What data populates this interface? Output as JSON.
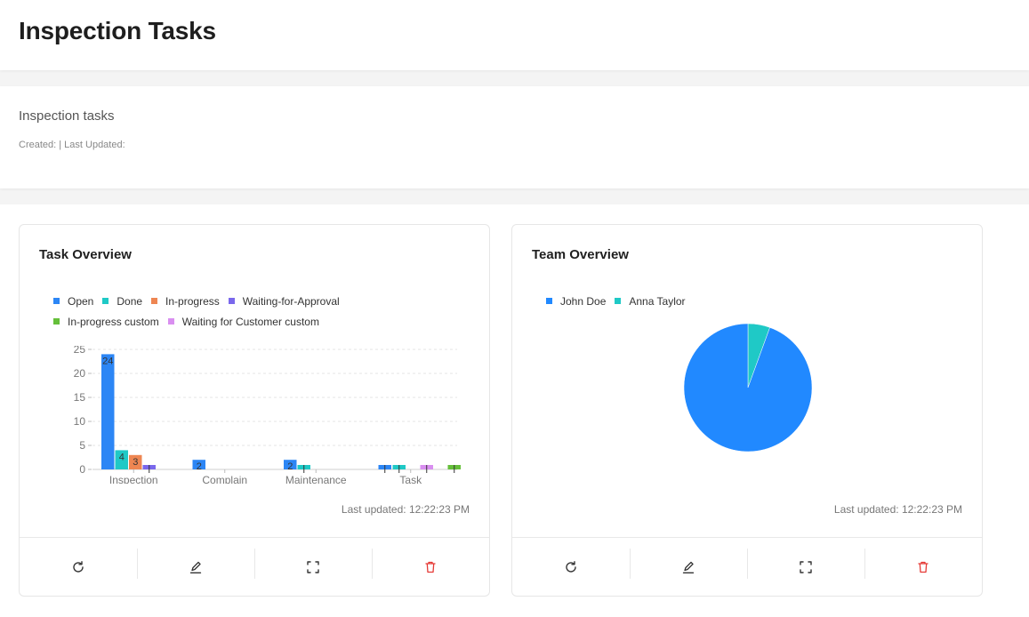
{
  "page": {
    "title": "Inspection Tasks"
  },
  "info": {
    "title": "Inspection tasks",
    "meta": "Created: | Last Updated:"
  },
  "task_widget": {
    "title": "Task Overview",
    "last_updated": "Last updated: 12:22:23 PM",
    "legend": [
      {
        "label": "Open",
        "color": "#2c86f5"
      },
      {
        "label": "Done",
        "color": "#1fc9c6"
      },
      {
        "label": "In-progress",
        "color": "#ee8652"
      },
      {
        "label": "Waiting-for-Approval",
        "color": "#7a68ec"
      },
      {
        "label": "In-progress custom",
        "color": "#65bf3a"
      },
      {
        "label": "Waiting for Customer custom",
        "color": "#d98ff0"
      }
    ]
  },
  "team_widget": {
    "title": "Team Overview",
    "last_updated": "Last updated: 12:22:23 PM",
    "legend": [
      {
        "label": "John Doe",
        "color": "#2189ff"
      },
      {
        "label": "Anna Taylor",
        "color": "#1fc9c6"
      }
    ]
  },
  "footer_icons": [
    "refresh-icon",
    "edit-icon",
    "fullscreen-icon",
    "delete-icon"
  ],
  "chart_data": [
    {
      "type": "bar",
      "title": "Task Overview",
      "categories": [
        "Inspection",
        "Complain",
        "Maintenance",
        "Task"
      ],
      "yticks": [
        0,
        5,
        10,
        15,
        20,
        25
      ],
      "ylim": [
        0,
        25
      ],
      "grid": true,
      "legend_position": "top",
      "series": [
        {
          "name": "Open",
          "color": "#2c86f5",
          "values": [
            24,
            2,
            2,
            1
          ]
        },
        {
          "name": "Done",
          "color": "#1fc9c6",
          "values": [
            4,
            0,
            1,
            1
          ]
        },
        {
          "name": "In-progress",
          "color": "#ee8652",
          "values": [
            3,
            0,
            0,
            0
          ]
        },
        {
          "name": "Waiting-for-Approval",
          "color": "#7a68ec",
          "values": [
            1,
            0,
            0,
            0
          ]
        },
        {
          "name": "Waiting for Customer custom",
          "color": "#d98ff0",
          "values": [
            0,
            0,
            0,
            1
          ]
        },
        {
          "name": "In-progress custom",
          "color": "#65bf3a",
          "values": [
            0,
            0,
            0,
            1
          ]
        }
      ],
      "data_labels": [
        {
          "category": "Inspection",
          "series": "Open",
          "text": "24"
        },
        {
          "category": "Inspection",
          "series": "Done",
          "text": "4"
        },
        {
          "category": "Inspection",
          "series": "In-progress",
          "text": "3"
        },
        {
          "category": "Complain",
          "series": "Open",
          "text": "2"
        },
        {
          "category": "Maintenance",
          "series": "Open",
          "text": "2"
        }
      ]
    },
    {
      "type": "pie",
      "title": "Team Overview",
      "legend_position": "top",
      "slices": [
        {
          "name": "John Doe",
          "value": 34,
          "color": "#2189ff"
        },
        {
          "name": "Anna Taylor",
          "value": 2,
          "color": "#1fc9c6"
        }
      ]
    }
  ]
}
